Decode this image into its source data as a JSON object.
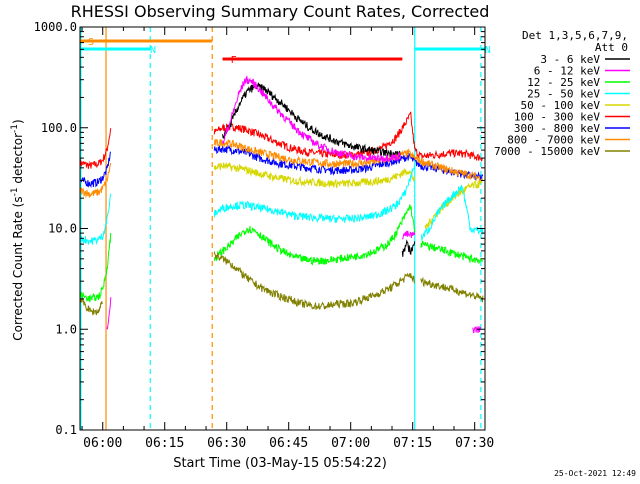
{
  "chart_data": {
    "type": "line",
    "title": "RHESSI Observing Summary Count Rates, Corrected",
    "xlabel": "Start Time (03-May-15 05:54:22)",
    "ylabel_main": "Corrected Count Rate (s",
    "ylabel_sup1": "-1",
    "ylabel_mid": " detector",
    "ylabel_sup2": "-1",
    "ylabel_end": ")",
    "yscale": "log",
    "ylim": [
      0.1,
      1000
    ],
    "xlim_minutes": [
      -5.5,
      92.5
    ],
    "x_ticks": [
      {
        "minute": 0,
        "label": "06:00"
      },
      {
        "minute": 15,
        "label": "06:15"
      },
      {
        "minute": 30,
        "label": "06:30"
      },
      {
        "minute": 45,
        "label": "06:45"
      },
      {
        "minute": 60,
        "label": "07:00"
      },
      {
        "minute": 75,
        "label": "07:15"
      },
      {
        "minute": 90,
        "label": "07:30"
      }
    ],
    "y_ticks": [
      {
        "value": 0.1,
        "label": "0.1"
      },
      {
        "value": 1,
        "label": "1.0"
      },
      {
        "value": 10,
        "label": "10.0"
      },
      {
        "value": 100,
        "label": "100.0"
      },
      {
        "value": 1000,
        "label": "1000.0"
      }
    ],
    "legend": {
      "placement": "right",
      "header1": "Det 1,3,5,6,7,9,",
      "header2": "Att 0",
      "entries": [
        {
          "name": "3 - 6 keV",
          "color": "#000000"
        },
        {
          "name": "6 - 12 keV",
          "color": "#ff00ff"
        },
        {
          "name": "12 - 25 keV",
          "color": "#00ff00"
        },
        {
          "name": "25 - 50 keV",
          "color": "#00ffff"
        },
        {
          "name": "50 - 100 keV",
          "color": "#d7d700"
        },
        {
          "name": "100 - 300 keV",
          "color": "#ff0000"
        },
        {
          "name": "300 - 800 keV",
          "color": "#0000ff"
        },
        {
          "name": "800 - 7000 keV",
          "color": "#ff8c00"
        },
        {
          "name": "7000 - 15000 keV",
          "color": "#808000"
        }
      ]
    },
    "flags": [
      {
        "label": "S",
        "color": "#ff8c00",
        "start": -5.5,
        "end": 26.5
      },
      {
        "label": "N",
        "color": "#00ffff",
        "start": -5.5,
        "end": 11.5
      },
      {
        "label": "N",
        "color": "#00ffff",
        "start": 75.5,
        "end": 92.5
      },
      {
        "label": "F",
        "color": "#ff0000",
        "start": 29,
        "end": 72.5
      }
    ],
    "vlines": [
      {
        "minute": 0.8,
        "color": "#ff8c00",
        "dashed": false
      },
      {
        "minute": 26.5,
        "color": "#ff8c00",
        "dashed": true
      },
      {
        "minute": -5.3,
        "color": "#00ffff",
        "dashed": false
      },
      {
        "minute": 11.5,
        "color": "#00ffff",
        "dashed": true
      },
      {
        "minute": 75.5,
        "color": "#00ffff",
        "dashed": false
      },
      {
        "minute": 91.5,
        "color": "#00ffff",
        "dashed": true
      }
    ],
    "series": [
      {
        "name": "100 - 300 keV",
        "color": "#ff0000",
        "segments": [
          {
            "x": [
              -5.5,
              -3,
              -1,
              0,
              1,
              2
            ],
            "y": [
              45,
              42,
              44,
              48,
              60,
              100
            ]
          },
          {
            "x": [
              27,
              29,
              32,
              35,
              38,
              42,
              46,
              50,
              55,
              60,
              64,
              68,
              71,
              73.5,
              74.5,
              75.5,
              77,
              79,
              82,
              85,
              88,
              90,
              92
            ],
            "y": [
              90,
              100,
              102,
              95,
              85,
              72,
              62,
              57,
              54,
              54,
              56,
              64,
              80,
              115,
              135,
              60,
              52,
              53,
              55,
              56,
              55,
              52,
              50
            ]
          }
        ]
      },
      {
        "name": "300 - 800 keV",
        "color": "#0000ff",
        "segments": [
          {
            "x": [
              -5.5,
              -3,
              -1,
              0,
              1,
              2
            ],
            "y": [
              30,
              28,
              29,
              32,
              38,
              60
            ]
          },
          {
            "x": [
              27,
              29,
              32,
              35,
              38,
              42,
              46,
              50,
              55,
              60,
              64,
              68,
              71,
              74,
              75.5,
              77,
              80,
              84,
              88,
              92
            ],
            "y": [
              60,
              62,
              60,
              56,
              50,
              45,
              42,
              40,
              38,
              38,
              40,
              44,
              47,
              52,
              46,
              42,
              40,
              37,
              34,
              32
            ]
          }
        ]
      },
      {
        "name": "800 - 7000 keV",
        "color": "#ff8c00",
        "segments": [
          {
            "x": [
              -5.5,
              -3,
              -1,
              0,
              1,
              2
            ],
            "y": [
              24,
              22,
              23,
              25,
              30,
              45
            ]
          },
          {
            "x": [
              27,
              29,
              32,
              35,
              38,
              42,
              46,
              50,
              55,
              60,
              64,
              68,
              71,
              74,
              75.5,
              78,
              82,
              86,
              90,
              92
            ],
            "y": [
              70,
              72,
              68,
              62,
              57,
              52,
              48,
              46,
              44,
              44,
              45,
              48,
              52,
              56,
              50,
              45,
              40,
              36,
              33,
              31
            ]
          }
        ]
      },
      {
        "name": "50 - 100 keV",
        "color": "#d7d700",
        "segments": [
          {
            "x": [
              27,
              29,
              32,
              35,
              38,
              42,
              46,
              50,
              55,
              60,
              64,
              68,
              71,
              74,
              75.5
            ],
            "y": [
              40,
              42,
              40,
              38,
              35,
              32,
              30,
              29,
              28,
              28,
              29,
              30,
              33,
              38,
              30
            ]
          },
          {
            "x": [
              78,
              80,
              82,
              84,
              86,
              88,
              90,
              92
            ],
            "y": [
              10,
              13,
              16,
              19,
              22,
              25,
              27,
              28
            ]
          }
        ]
      },
      {
        "name": "3 - 6 keV",
        "color": "#000000",
        "segments": [
          {
            "x": [
              29,
              31,
              33,
              35,
              37,
              39,
              41,
              44,
              47,
              50,
              53,
              56,
              59,
              62,
              65,
              68,
              70,
              72
            ],
            "y": [
              80,
              110,
              170,
              230,
              260,
              245,
              210,
              165,
              125,
              100,
              85,
              75,
              68,
              63,
              60,
              57,
              56,
              55
            ]
          },
          {
            "x": [
              72.5,
              73.5,
              74.5,
              75.5
            ],
            "y": [
              5.5,
              7,
              6,
              7
            ]
          }
        ]
      },
      {
        "name": "6 - 12 keV",
        "color": "#ff00ff",
        "segments": [
          {
            "x": [
              1,
              1.5,
              2
            ],
            "y": [
              1.0,
              1.4,
              2.0
            ]
          },
          {
            "x": [
              29,
              31,
              33,
              34.5,
              36,
              38,
              40,
              43,
              46,
              49,
              52,
              55,
              58,
              61,
              64,
              67,
              70,
              72
            ],
            "y": [
              70,
              120,
              220,
              300,
              290,
              240,
              190,
              140,
              105,
              82,
              68,
              60,
              55,
              52,
              50,
              50,
              51,
              52
            ]
          },
          {
            "x": [
              72.5,
              73.5,
              74.5,
              75.5
            ],
            "y": [
              8.5,
              8.8,
              8.5,
              8.7
            ]
          },
          {
            "x": [
              89.5,
              90.5,
              91.5
            ],
            "y": [
              1.0,
              1.0,
              1.0
            ]
          }
        ]
      },
      {
        "name": "25 - 50 keV",
        "color": "#00ffff",
        "segments": [
          {
            "x": [
              -5.5,
              -3,
              -1,
              0,
              1,
              2
            ],
            "y": [
              8,
              7.5,
              7.8,
              8.5,
              12,
              22
            ]
          },
          {
            "x": [
              27,
              29,
              32,
              35,
              38,
              42,
              46,
              50,
              55,
              60,
              64,
              68,
              71,
              73,
              74.5,
              75.5
            ],
            "y": [
              14,
              16,
              17,
              17,
              16,
              15,
              13.5,
              13,
              12.5,
              12.5,
              13,
              14.5,
              17,
              22,
              32,
              45
            ]
          },
          {
            "x": [
              77,
              79,
              81,
              83,
              85,
              87,
              89,
              91,
              92
            ],
            "y": [
              8,
              10,
              14,
              18,
              22,
              26,
              10,
              9.5,
              9.5
            ]
          }
        ]
      },
      {
        "name": "12 - 25 keV",
        "color": "#00ff00",
        "segments": [
          {
            "x": [
              -5.5,
              -3,
              -1,
              0,
              1,
              2
            ],
            "y": [
              2.2,
              2.0,
              2.1,
              2.5,
              4,
              9
            ]
          },
          {
            "x": [
              27,
              29,
              31,
              33,
              35,
              37,
              39,
              42,
              45,
              48,
              51,
              54,
              57,
              60,
              63,
              66,
              69,
              71,
              73,
              74.5,
              75.5
            ],
            "y": [
              5,
              6,
              7,
              8.5,
              10,
              9.5,
              8,
              6.5,
              5.5,
              5,
              4.8,
              4.8,
              5,
              5.2,
              5.5,
              6,
              7,
              9,
              13,
              17,
              9
            ]
          },
          {
            "x": [
              77,
              80,
              83,
              86,
              89,
              92
            ],
            "y": [
              7,
              6.5,
              6,
              5.5,
              5,
              4.8
            ]
          }
        ]
      },
      {
        "name": "7000 - 15000 keV",
        "color": "#808000",
        "segments": [
          {
            "x": [
              -5.5,
              -3,
              -1,
              0
            ],
            "y": [
              2.0,
              1.5,
              1.5,
              2.0
            ]
          },
          {
            "x": [
              27,
              29,
              31,
              33,
              35,
              37,
              39,
              42,
              45,
              48,
              51,
              54,
              57,
              60,
              63,
              66,
              69,
              71,
              73,
              74.5,
              75.5
            ],
            "y": [
              5.5,
              5,
              4.5,
              3.8,
              3.2,
              2.8,
              2.5,
              2.2,
              2.0,
              1.8,
              1.7,
              1.7,
              1.8,
              1.8,
              2.0,
              2.2,
              2.5,
              2.8,
              3.2,
              3.5,
              3.0
            ]
          },
          {
            "x": [
              77,
              80,
              83,
              86,
              89,
              92
            ],
            "y": [
              3.0,
              2.8,
              2.6,
              2.4,
              2.2,
              2.0
            ]
          }
        ]
      }
    ]
  },
  "footer": {
    "timestamp": "25-Oct-2021 12:49"
  }
}
